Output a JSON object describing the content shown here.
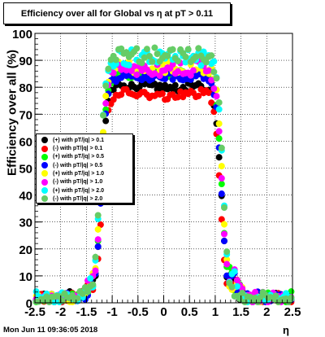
{
  "chart_data": {
    "type": "scatter",
    "title": "Efficiency over all for Global vs   η at pT > 0.11",
    "xlabel": "η",
    "ylabel": "Efficiency over all (%)",
    "xlim": [
      -2.5,
      2.5
    ],
    "ylim": [
      0,
      100
    ],
    "x_ticks": [
      "-2.5",
      "-2",
      "-1.5",
      "-1",
      "-0.5",
      "0",
      "0.5",
      "1",
      "1.5",
      "2",
      "2.5"
    ],
    "y_ticks": [
      "0",
      "10",
      "20",
      "30",
      "40",
      "50",
      "60",
      "70",
      "80",
      "90",
      "100"
    ],
    "grid": true,
    "legend_position": "middle-left",
    "series": [
      {
        "name": "(+) with pT/|q| > 0.1",
        "color": "#000000",
        "plateau": 80,
        "edge_left": -1.22,
        "edge_right": 1.12,
        "offset": 0
      },
      {
        "name": "(-) with pT/|q| > 0.1",
        "color": "#ff0000",
        "plateau": 78,
        "edge_left": -1.2,
        "edge_right": 1.1,
        "offset": 1
      },
      {
        "name": "(+) with pT/|q| > 0.5",
        "color": "#00ff00",
        "plateau": 85,
        "edge_left": -1.22,
        "edge_right": 1.13,
        "offset": 2
      },
      {
        "name": "(-) with pT/|q| > 0.5",
        "color": "#0000ff",
        "plateau": 84,
        "edge_left": -1.21,
        "edge_right": 1.12,
        "offset": 3
      },
      {
        "name": "(+) with pT/|q| > 1.0",
        "color": "#ffff00",
        "plateau": 88,
        "edge_left": -1.23,
        "edge_right": 1.14,
        "offset": 4
      },
      {
        "name": "(-) with pT/|q| > 1.0",
        "color": "#ff00ff",
        "plateau": 87,
        "edge_left": -1.22,
        "edge_right": 1.13,
        "offset": 5
      },
      {
        "name": "(+) with pT/|q| > 2.0",
        "color": "#00ffff",
        "plateau": 91,
        "edge_left": -1.24,
        "edge_right": 1.15,
        "offset": 6
      },
      {
        "name": "(-) with pT/|q| > 2.0",
        "color": "#66cc66",
        "plateau": 92,
        "edge_left": -1.24,
        "edge_right": 1.15,
        "offset": 7
      }
    ]
  },
  "footer": {
    "datestamp": "Mon Jun 11 09:36:05 2018"
  }
}
